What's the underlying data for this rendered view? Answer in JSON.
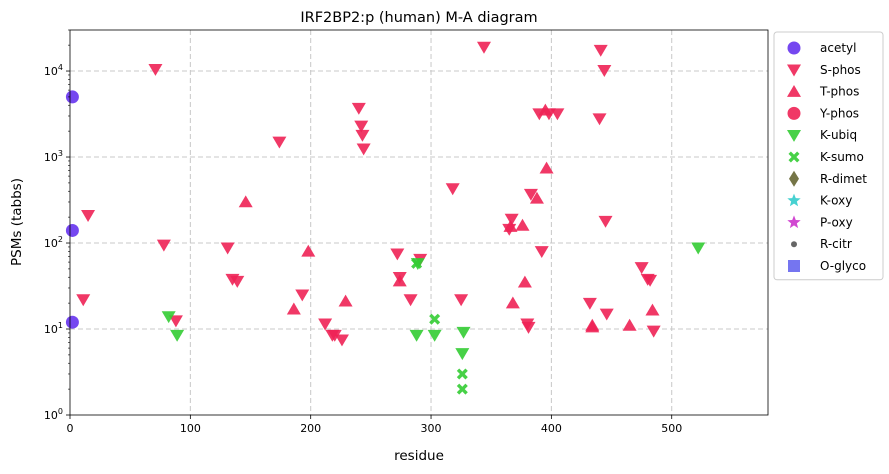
{
  "chart_data": {
    "type": "scatter",
    "title": "IRF2BP2:p (human) M-A diagram",
    "xlabel": "residue",
    "ylabel": "PSMs (tabbs)",
    "xlim": [
      0,
      580
    ],
    "ylim": [
      1,
      30000
    ],
    "yscale": "log",
    "x_ticks": [
      0,
      100,
      200,
      300,
      400,
      500
    ],
    "y_ticks": [
      {
        "value": 1,
        "base": "10",
        "exp": "0"
      },
      {
        "value": 10,
        "base": "10",
        "exp": "1"
      },
      {
        "value": 100,
        "base": "10",
        "exp": "2"
      },
      {
        "value": 1000,
        "base": "10",
        "exp": "3"
      },
      {
        "value": 10000,
        "base": "10",
        "exp": "4"
      }
    ],
    "grid": true,
    "legend_position": "outside-right",
    "series": [
      {
        "name": "acetyl",
        "marker": "circle",
        "color": "#6633ee",
        "points": [
          [
            2,
            5000
          ],
          [
            2,
            140
          ],
          [
            2,
            12
          ]
        ]
      },
      {
        "name": "S-phos",
        "marker": "triangle-down",
        "color": "#ee2255",
        "points": [
          [
            11,
            22
          ],
          [
            15,
            210
          ],
          [
            71,
            10500
          ],
          [
            78,
            95
          ],
          [
            88,
            12.5
          ],
          [
            131,
            88
          ],
          [
            135,
            38
          ],
          [
            139,
            36
          ],
          [
            174,
            1500
          ],
          [
            193,
            25
          ],
          [
            212,
            11.5
          ],
          [
            218,
            8.5
          ],
          [
            220,
            8.5
          ],
          [
            226,
            7.5
          ],
          [
            240,
            3700
          ],
          [
            242,
            2300
          ],
          [
            243,
            1800
          ],
          [
            244,
            1250
          ],
          [
            272,
            75
          ],
          [
            274,
            40
          ],
          [
            283,
            22
          ],
          [
            291,
            65
          ],
          [
            318,
            430
          ],
          [
            325,
            22
          ],
          [
            344,
            19000
          ],
          [
            365,
            145
          ],
          [
            367,
            190
          ],
          [
            380,
            11.5
          ],
          [
            381,
            10.5
          ],
          [
            383,
            370
          ],
          [
            390,
            3200
          ],
          [
            392,
            80
          ],
          [
            398,
            3200
          ],
          [
            405,
            3200
          ],
          [
            432,
            20
          ],
          [
            440,
            2800
          ],
          [
            441,
            17500
          ],
          [
            444,
            10200
          ],
          [
            445,
            180
          ],
          [
            446,
            15
          ],
          [
            475,
            52
          ],
          [
            480,
            38
          ],
          [
            482,
            37
          ],
          [
            485,
            9.5
          ]
        ]
      },
      {
        "name": "T-phos",
        "marker": "triangle-up",
        "color": "#ee2255",
        "points": [
          [
            146,
            300
          ],
          [
            186,
            17
          ],
          [
            198,
            80
          ],
          [
            229,
            21
          ],
          [
            274,
            36
          ],
          [
            366,
            155
          ],
          [
            368,
            20
          ],
          [
            376,
            160
          ],
          [
            378,
            35
          ],
          [
            388,
            330
          ],
          [
            395,
            3500
          ],
          [
            396,
            740
          ],
          [
            434,
            11
          ],
          [
            434,
            10.5
          ],
          [
            465,
            11
          ],
          [
            484,
            16.5
          ]
        ]
      },
      {
        "name": "Y-phos",
        "marker": "circle",
        "color": "#ee2255",
        "points": []
      },
      {
        "name": "K-ubiq",
        "marker": "triangle-down",
        "color": "#33cc33",
        "points": [
          [
            82,
            14
          ],
          [
            89,
            8.5
          ],
          [
            288,
            8.5
          ],
          [
            289,
            58
          ],
          [
            303,
            8.5
          ],
          [
            326,
            5.2
          ],
          [
            327,
            9.2
          ],
          [
            522,
            88
          ]
        ]
      },
      {
        "name": "K-sumo",
        "marker": "x",
        "color": "#33cc33",
        "points": [
          [
            288,
            58
          ],
          [
            303,
            13
          ],
          [
            326,
            3
          ],
          [
            326,
            2
          ]
        ]
      },
      {
        "name": "R-dimet",
        "marker": "diamond",
        "color": "#666633",
        "points": []
      },
      {
        "name": "K-oxy",
        "marker": "star",
        "color": "#33cccc",
        "points": []
      },
      {
        "name": "P-oxy",
        "marker": "star",
        "color": "#cc33cc",
        "points": []
      },
      {
        "name": "R-citr",
        "marker": "dot",
        "color": "#555555",
        "points": []
      },
      {
        "name": "O-glyco",
        "marker": "square",
        "color": "#6666ee",
        "points": []
      }
    ]
  }
}
